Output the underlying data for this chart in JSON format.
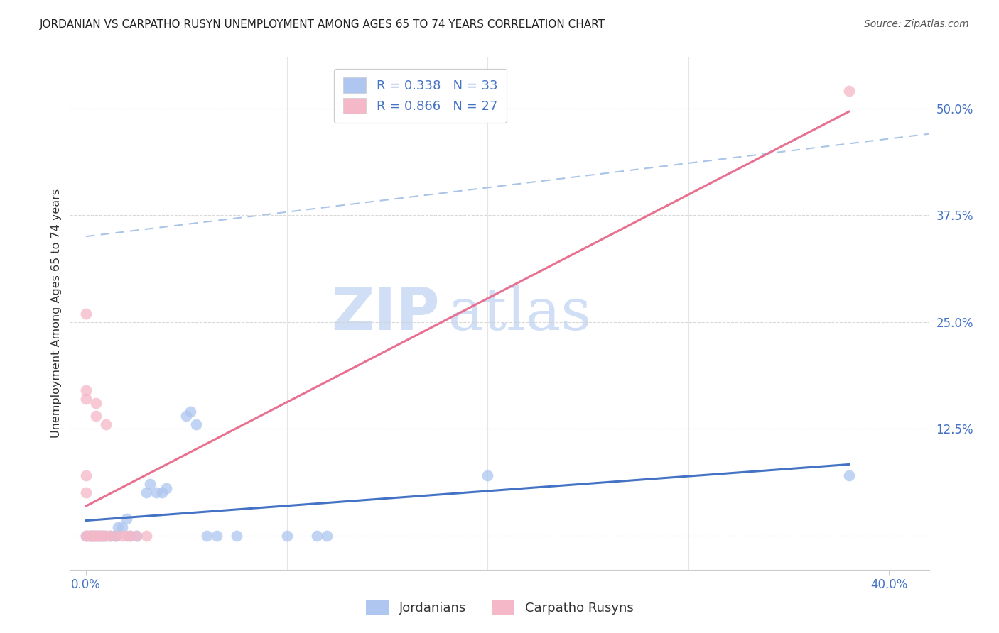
{
  "title": "JORDANIAN VS CARPATHO RUSYN UNEMPLOYMENT AMONG AGES 65 TO 74 YEARS CORRELATION CHART",
  "source_text": "Source: ZipAtlas.com",
  "ylabel": "Unemployment Among Ages 65 to 74 years",
  "watermark_zip": "ZIP",
  "watermark_atlas": "atlas",
  "xlim": [
    -0.008,
    0.42
  ],
  "ylim": [
    -0.04,
    0.56
  ],
  "xtick_positions": [
    0.0,
    0.4
  ],
  "xtick_labels": [
    "0.0%",
    "40.0%"
  ],
  "xtick_minor_positions": [
    0.1,
    0.2,
    0.3
  ],
  "ytick_positions": [
    0.0,
    0.125,
    0.25,
    0.375,
    0.5
  ],
  "ytick_labels": [
    "",
    "12.5%",
    "25.0%",
    "37.5%",
    "50.0%"
  ],
  "legend_entries": [
    {
      "color": "#aec6f0",
      "R": 0.338,
      "N": 33,
      "label": "Jordanians"
    },
    {
      "color": "#f4b8c8",
      "R": 0.866,
      "N": 27,
      "label": "Carpatho Rusyns"
    }
  ],
  "blue_scatter": [
    [
      0.0,
      0.0
    ],
    [
      0.002,
      0.0
    ],
    [
      0.003,
      0.0
    ],
    [
      0.004,
      0.0
    ],
    [
      0.005,
      0.0
    ],
    [
      0.006,
      0.0
    ],
    [
      0.007,
      0.0
    ],
    [
      0.008,
      0.0
    ],
    [
      0.01,
      0.0
    ],
    [
      0.012,
      0.0
    ],
    [
      0.014,
      0.0
    ],
    [
      0.015,
      0.0
    ],
    [
      0.016,
      0.01
    ],
    [
      0.018,
      0.01
    ],
    [
      0.02,
      0.02
    ],
    [
      0.022,
      0.0
    ],
    [
      0.025,
      0.0
    ],
    [
      0.03,
      0.05
    ],
    [
      0.032,
      0.06
    ],
    [
      0.035,
      0.05
    ],
    [
      0.038,
      0.05
    ],
    [
      0.04,
      0.055
    ],
    [
      0.05,
      0.14
    ],
    [
      0.052,
      0.145
    ],
    [
      0.055,
      0.13
    ],
    [
      0.06,
      0.0
    ],
    [
      0.065,
      0.0
    ],
    [
      0.075,
      0.0
    ],
    [
      0.1,
      0.0
    ],
    [
      0.115,
      0.0
    ],
    [
      0.12,
      0.0
    ],
    [
      0.2,
      0.07
    ],
    [
      0.38,
      0.07
    ]
  ],
  "pink_scatter": [
    [
      0.0,
      0.0
    ],
    [
      0.001,
      0.0
    ],
    [
      0.002,
      0.0
    ],
    [
      0.003,
      0.0
    ],
    [
      0.004,
      0.0
    ],
    [
      0.005,
      0.0
    ],
    [
      0.006,
      0.0
    ],
    [
      0.007,
      0.0
    ],
    [
      0.008,
      0.0
    ],
    [
      0.009,
      0.0
    ],
    [
      0.01,
      0.0
    ],
    [
      0.0,
      0.05
    ],
    [
      0.0,
      0.07
    ],
    [
      0.0,
      0.16
    ],
    [
      0.0,
      0.17
    ],
    [
      0.0,
      0.26
    ],
    [
      0.005,
      0.14
    ],
    [
      0.005,
      0.155
    ],
    [
      0.01,
      0.13
    ],
    [
      0.012,
      0.0
    ],
    [
      0.015,
      0.0
    ],
    [
      0.018,
      0.0
    ],
    [
      0.02,
      0.0
    ],
    [
      0.022,
      0.0
    ],
    [
      0.025,
      0.0
    ],
    [
      0.03,
      0.0
    ],
    [
      0.38,
      0.52
    ]
  ],
  "blue_line_color": "#4472c4",
  "pink_line_color": "#e87090",
  "ref_line_color": "#aac4e8",
  "scatter_blue_color": "#aec6f0",
  "scatter_pink_color": "#f4b8c8",
  "scatter_size": 130,
  "scatter_alpha": 0.75,
  "title_color": "#222222",
  "axis_color": "#4472c4",
  "grid_color": "#d0d0d0",
  "watermark_color": "#d0dff5",
  "background_color": "#ffffff"
}
